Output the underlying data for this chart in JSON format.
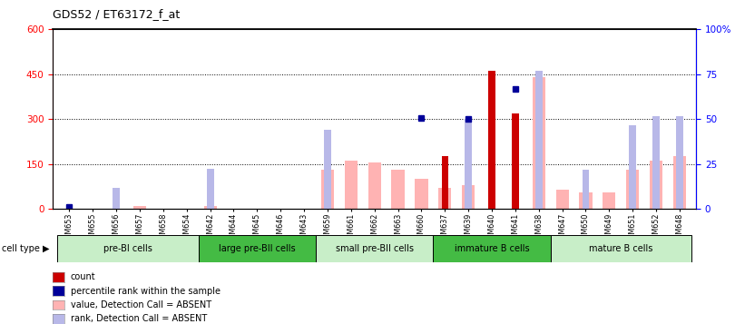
{
  "title": "GDS52 / ET63172_f_at",
  "samples": [
    "GSM653",
    "GSM655",
    "GSM656",
    "GSM657",
    "GSM658",
    "GSM654",
    "GSM642",
    "GSM644",
    "GSM645",
    "GSM646",
    "GSM643",
    "GSM659",
    "GSM661",
    "GSM662",
    "GSM663",
    "GSM660",
    "GSM637",
    "GSM639",
    "GSM640",
    "GSM641",
    "GSM638",
    "GSM647",
    "GSM650",
    "GSM649",
    "GSM651",
    "GSM652",
    "GSM648"
  ],
  "count_values": [
    0,
    0,
    0,
    0,
    0,
    0,
    0,
    0,
    0,
    0,
    0,
    0,
    0,
    0,
    0,
    0,
    175,
    0,
    460,
    320,
    0,
    0,
    0,
    0,
    0,
    0,
    0
  ],
  "percentile_values": [
    8,
    0,
    0,
    0,
    0,
    0,
    0,
    0,
    0,
    0,
    0,
    0,
    0,
    0,
    0,
    305,
    0,
    300,
    0,
    400,
    0,
    0,
    0,
    0,
    0,
    0,
    0
  ],
  "absent_value_values": [
    0,
    0,
    0,
    10,
    0,
    0,
    10,
    0,
    0,
    0,
    0,
    130,
    160,
    155,
    130,
    100,
    70,
    80,
    0,
    0,
    440,
    65,
    55,
    55,
    130,
    160,
    175
  ],
  "absent_rank_values": [
    0,
    0,
    70,
    0,
    0,
    0,
    135,
    0,
    0,
    0,
    0,
    265,
    0,
    0,
    0,
    0,
    0,
    300,
    0,
    0,
    460,
    0,
    130,
    0,
    280,
    310,
    310
  ],
  "cell_groups": [
    {
      "label": "pre-BI cells",
      "start": 0,
      "end": 6,
      "color": "#c8eec8"
    },
    {
      "label": "large pre-BII cells",
      "start": 6,
      "end": 11,
      "color": "#44bb44"
    },
    {
      "label": "small pre-BII cells",
      "start": 11,
      "end": 16,
      "color": "#c8eec8"
    },
    {
      "label": "immature B cells",
      "start": 16,
      "end": 21,
      "color": "#44bb44"
    },
    {
      "label": "mature B cells",
      "start": 21,
      "end": 27,
      "color": "#c8eec8"
    }
  ],
  "ylim_left": [
    0,
    600
  ],
  "ylim_right": [
    0,
    100
  ],
  "yticks_left": [
    0,
    150,
    300,
    450,
    600
  ],
  "yticks_right": [
    0,
    25,
    50,
    75,
    100
  ],
  "ytick_labels_right": [
    "0",
    "25",
    "50",
    "75",
    "100%"
  ],
  "count_color": "#cc0000",
  "percentile_color": "#000099",
  "absent_value_color": "#ffb3b3",
  "absent_rank_color": "#b8b8e8",
  "bw_pink": 0.55,
  "bw_blue": 0.3,
  "bw_red": 0.28
}
